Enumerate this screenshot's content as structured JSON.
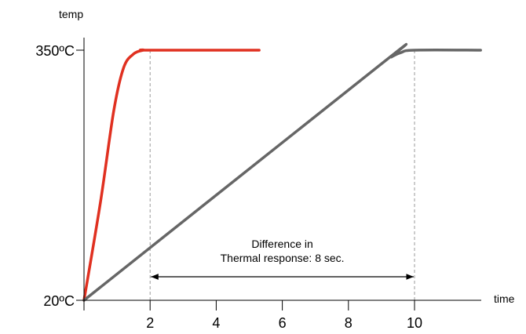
{
  "chart_data": {
    "type": "line",
    "xlabel": "time",
    "ylabel": "temp",
    "xlim": [
      0,
      12
    ],
    "ylim": [
      20,
      350
    ],
    "x_ticks": [
      2,
      4,
      6,
      8,
      10
    ],
    "y_ticks": [
      {
        "value": 350,
        "label": "350ºC"
      },
      {
        "value": 20,
        "label": "20ºC"
      }
    ],
    "series": [
      {
        "color": "#e03020",
        "points": [
          [
            0,
            20
          ],
          [
            0.5,
            150
          ],
          [
            0.9,
            270
          ],
          [
            1.2,
            327
          ],
          [
            1.5,
            345
          ],
          [
            1.8,
            350
          ],
          [
            2,
            350
          ],
          [
            5.3,
            350
          ]
        ]
      },
      {
        "color": "#666666",
        "points": [
          [
            0,
            20
          ],
          [
            9.0,
            332
          ],
          [
            9.3,
            341
          ],
          [
            9.6,
            347
          ],
          [
            10,
            350
          ],
          [
            12,
            350
          ]
        ]
      }
    ],
    "reference_lines_x": [
      2,
      10
    ],
    "annotation": {
      "line1": "Difference in",
      "line2": "Thermal response: 8 sec.",
      "from_x": 2,
      "to_x": 10,
      "at_y": 20
    },
    "grid": false,
    "legend": "none"
  }
}
